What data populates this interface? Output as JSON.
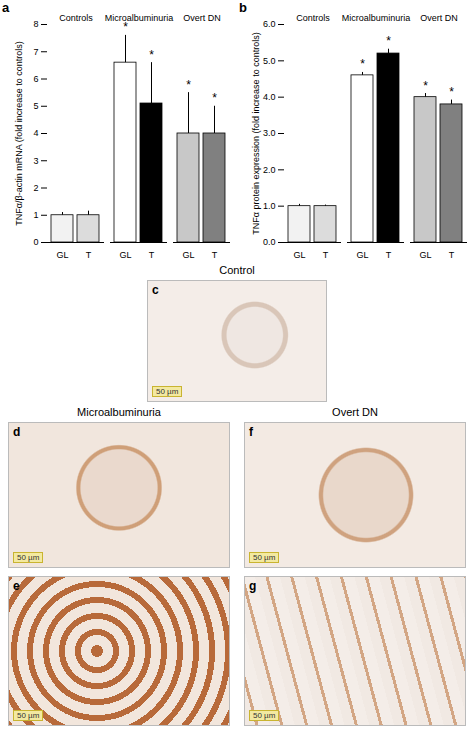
{
  "chart_data": [
    {
      "type": "bar",
      "title": "a",
      "y_label": "TNFα/β-actin mRNA (fold increase to controls)",
      "categories": [
        "GL",
        "T",
        "GL",
        "T",
        "GL",
        "T"
      ],
      "groups": [
        "Controls",
        "Controls",
        "Microalbuminuria",
        "Microalbuminuria",
        "Overt DN",
        "Overt DN"
      ],
      "values": [
        1.0,
        1.0,
        6.6,
        5.1,
        4.0,
        4.0
      ],
      "errors": [
        0.1,
        0.15,
        1.0,
        1.5,
        1.5,
        1.0
      ],
      "significance": [
        null,
        null,
        "*",
        "*",
        "*",
        "*"
      ],
      "colors": [
        "#f2f2f2",
        "#dcdcdc",
        "#ffffff",
        "#000000",
        "#c8c8c8",
        "#808080"
      ],
      "ylim": [
        0,
        8
      ],
      "yticks": [
        0,
        1,
        2,
        3,
        4,
        5,
        6,
        7,
        8
      ]
    },
    {
      "type": "bar",
      "title": "b",
      "y_label": "TNFα protein expression (fold increase to controls)",
      "categories": [
        "GL",
        "T",
        "GL",
        "T",
        "GL",
        "T"
      ],
      "groups": [
        "Controls",
        "Controls",
        "Microalbuminuria",
        "Microalbuminuria",
        "Overt DN",
        "Overt DN"
      ],
      "values": [
        1.0,
        1.0,
        4.6,
        5.2,
        4.0,
        3.8
      ],
      "errors": [
        0.05,
        0.03,
        0.08,
        0.12,
        0.1,
        0.12
      ],
      "significance": [
        null,
        null,
        "*",
        "*",
        "*",
        "*"
      ],
      "colors": [
        "#f2f2f2",
        "#dcdcdc",
        "#ffffff",
        "#000000",
        "#c8c8c8",
        "#808080"
      ],
      "ylim": [
        0,
        6
      ],
      "yticks": [
        0,
        1,
        2,
        3,
        4,
        5,
        6
      ]
    }
  ],
  "micrographs": {
    "headings": [
      {
        "text": "Control",
        "panels": [
          {
            "letter": "c",
            "scale_bar": "50 µm"
          }
        ]
      },
      {
        "text": "Microalbuminuria",
        "panels": [
          {
            "letter": "d",
            "scale_bar": "50 µm"
          },
          {
            "letter": "e",
            "scale_bar": "50 µm"
          }
        ]
      },
      {
        "text": "Overt DN",
        "panels": [
          {
            "letter": "f",
            "scale_bar": "50 µm"
          },
          {
            "letter": "g",
            "scale_bar": "50 µm"
          }
        ]
      }
    ]
  }
}
